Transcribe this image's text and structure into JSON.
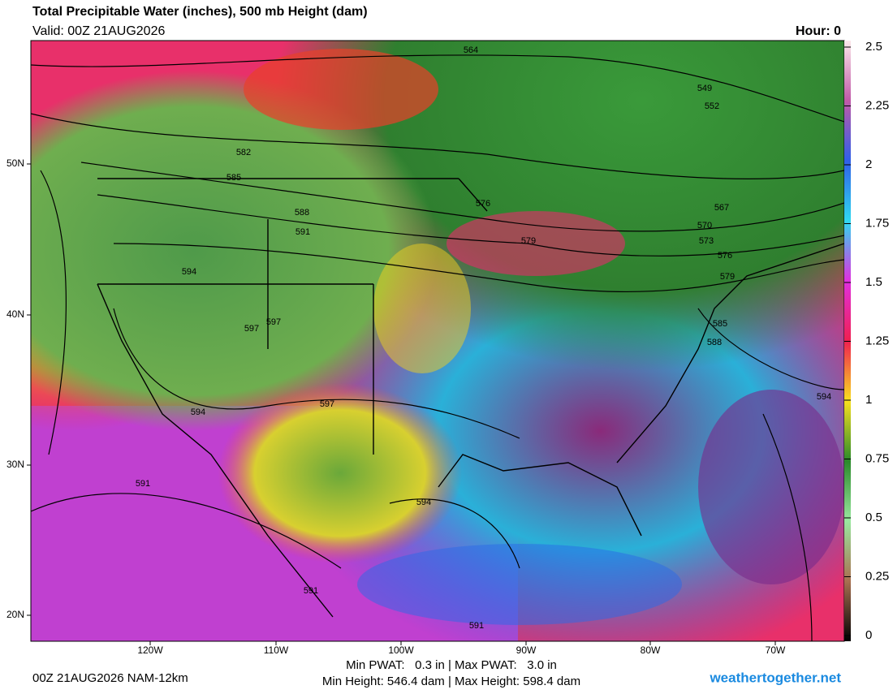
{
  "header": {
    "title": "Total Precipitable Water (inches), 500 mb Height (dam)",
    "valid": "Valid: 00Z 21AUG2026",
    "hour": "Hour: 0"
  },
  "colorbar": {
    "ticks": [
      2.5,
      2.25,
      2,
      1.75,
      1.5,
      1.25,
      1,
      0.75,
      0.5,
      0.25,
      0
    ],
    "range": [
      0,
      2.5
    ]
  },
  "latitudes": [
    "50N",
    "40N",
    "30N",
    "20N"
  ],
  "longitudes": [
    "120W",
    "110W",
    "100W",
    "90W",
    "80W",
    "70W"
  ],
  "contour_labels": [
    "564",
    "549",
    "552",
    "582",
    "585",
    "588",
    "591",
    "594",
    "597",
    "597",
    "597",
    "576",
    "579",
    "567",
    "570",
    "573",
    "576",
    "579",
    "585",
    "588",
    "594",
    "594",
    "591",
    "594",
    "591",
    "591"
  ],
  "footer": {
    "run": "00Z 21AUG2026 NAM-12km",
    "pwat": "Min PWAT:   0.3 in | Max PWAT:   3.0 in",
    "height": "Min Height: 546.4 dam | Max Height: 598.4 dam",
    "site": "weathertogether.net"
  }
}
